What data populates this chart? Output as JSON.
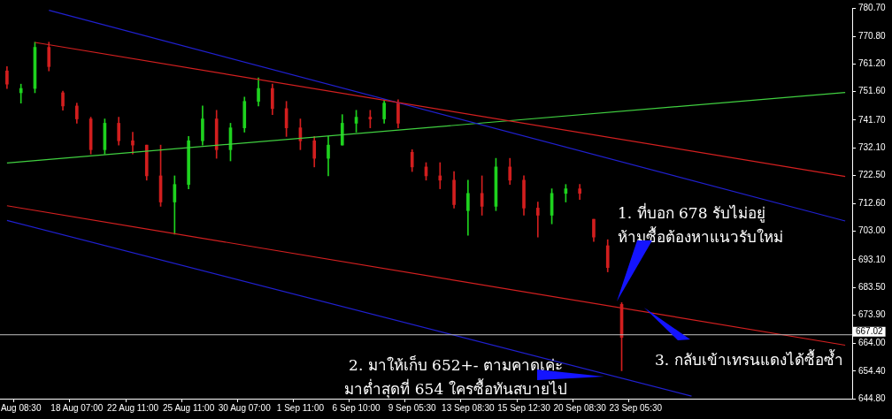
{
  "chart_data": {
    "type": "candlestick",
    "categories": [
      null,
      "Aug 08:30",
      null,
      null,
      null,
      "18 Aug 07:00",
      null,
      null,
      null,
      "22 Aug 11:00",
      null,
      null,
      null,
      "25 Aug 11:00",
      null,
      null,
      null,
      "30 Aug 07:00",
      null,
      null,
      null,
      "1 Sep 11:00",
      null,
      null,
      null,
      "6 Sep 10:00",
      null,
      null,
      null,
      "9 Sep 05:30",
      null,
      null,
      null,
      "13 Sep 08:30",
      null,
      null,
      null,
      "15 Sep 12:30",
      null,
      null,
      null,
      "20 Sep 08:30",
      null,
      null,
      null,
      "23 Sep 05:30",
      null,
      null,
      null,
      null,
      null,
      null,
      null,
      null,
      null,
      null,
      null,
      null,
      null,
      null,
      null
    ],
    "ohlc": [
      [
        758.8,
        760.3,
        752.7,
        754.2
      ],
      [
        751.2,
        754.2,
        747.6,
        752.7
      ],
      [
        752.7,
        768.8,
        751.2,
        767.0
      ],
      [
        767.0,
        768.8,
        758.8,
        760.3
      ],
      [
        751.2,
        751.8,
        745.1,
        746.6
      ],
      [
        746.6,
        747.6,
        740.6,
        742.1
      ],
      [
        742.1,
        742.7,
        729.9,
        731.4
      ],
      [
        731.4,
        742.1,
        729.9,
        740.6
      ],
      [
        740.6,
        742.7,
        733.0,
        734.5
      ],
      [
        734.5,
        737.5,
        729.9,
        733.0
      ],
      [
        733.0,
        733.0,
        720.8,
        722.3
      ],
      [
        722.3,
        733.0,
        711.7,
        713.2
      ],
      [
        713.2,
        722.3,
        702.0,
        719.3
      ],
      [
        719.3,
        736.0,
        717.8,
        734.5
      ],
      [
        734.5,
        746.6,
        733.0,
        742.1
      ],
      [
        742.1,
        745.1,
        728.4,
        731.4
      ],
      [
        731.4,
        740.6,
        727.5,
        739.0
      ],
      [
        739.0,
        749.7,
        737.5,
        748.2
      ],
      [
        748.2,
        756.4,
        746.6,
        752.7
      ],
      [
        752.7,
        754.2,
        743.6,
        745.7
      ],
      [
        745.7,
        748.2,
        736.0,
        739.0
      ],
      [
        739.0,
        742.1,
        731.4,
        734.5
      ],
      [
        734.5,
        736.0,
        725.4,
        728.4
      ],
      [
        728.4,
        736.0,
        722.3,
        733.0
      ],
      [
        733.0,
        743.6,
        733.0,
        740.6
      ],
      [
        740.6,
        745.1,
        737.5,
        742.7
      ],
      [
        742.7,
        745.1,
        739.0,
        742.1
      ],
      [
        742.1,
        748.8,
        740.6,
        747.6
      ],
      [
        747.6,
        748.8,
        739.0,
        740.6
      ],
      [
        730.5,
        731.4,
        723.8,
        725.4
      ],
      [
        725.4,
        726.9,
        720.8,
        722.3
      ],
      [
        722.3,
        726.9,
        717.8,
        720.8
      ],
      [
        720.8,
        723.8,
        711.1,
        712.3
      ],
      [
        710.2,
        720.8,
        701.6,
        716.2
      ],
      [
        716.2,
        722.3,
        708.6,
        711.7
      ],
      [
        711.7,
        728.4,
        710.2,
        725.4
      ],
      [
        725.4,
        728.4,
        719.3,
        720.8
      ],
      [
        720.8,
        722.3,
        708.6,
        711.1
      ],
      [
        711.1,
        713.2,
        701.0,
        708.6
      ],
      [
        708.6,
        717.8,
        705.6,
        716.2
      ],
      [
        716.2,
        719.3,
        713.2,
        717.8
      ],
      [
        717.8,
        719.3,
        714.1,
        716.2
      ],
      [
        707.2,
        707.2,
        699.5,
        701.0
      ],
      [
        698.0,
        700.1,
        688.9,
        690.4
      ],
      [
        677.6,
        678.2,
        654.5,
        666.1
      ],
      null,
      null,
      null,
      null,
      null,
      null,
      null,
      null,
      null,
      null,
      null,
      null,
      null,
      null,
      null,
      null
    ],
    "colors": [
      "#d21e1e",
      "#1ed21e",
      "#1ed21e",
      "#d21e1e",
      "#d21e1e",
      "#d21e1e",
      "#d21e1e",
      "#1ed21e",
      "#d21e1e",
      "#d21e1e",
      "#d21e1e",
      "#d21e1e",
      "#1ed21e",
      "#1ed21e",
      "#1ed21e",
      "#d21e1e",
      "#1ed21e",
      "#1ed21e",
      "#1ed21e",
      "#d21e1e",
      "#d21e1e",
      "#d21e1e",
      "#d21e1e",
      "#1ed21e",
      "#1ed21e",
      "#1ed21e",
      "#d21e1e",
      "#1ed21e",
      "#d21e1e",
      "#d21e1e",
      "#d21e1e",
      "#d21e1e",
      "#d21e1e",
      "#1ed21e",
      "#d21e1e",
      "#1ed21e",
      "#d21e1e",
      "#d21e1e",
      "#d21e1e",
      "#1ed21e",
      "#1ed21e",
      "#d21e1e",
      "#d21e1e",
      "#d21e1e",
      "#d21e1e",
      null,
      null,
      null,
      null,
      null,
      null,
      null,
      null,
      null,
      null,
      null,
      null,
      null,
      null,
      null,
      null
    ],
    "series": [
      {
        "type": "line",
        "color": "#d42020",
        "values": [
          null,
          null,
          768.7,
          null,
          null,
          null,
          null,
          null,
          null,
          null,
          null,
          null,
          null,
          null,
          null,
          null,
          null,
          null,
          null,
          null,
          null,
          null,
          null,
          null,
          null,
          null,
          null,
          null,
          null,
          null,
          null,
          null,
          null,
          null,
          null,
          null,
          null,
          null,
          null,
          null,
          null,
          null,
          null,
          null,
          null,
          null,
          null,
          null,
          null,
          null,
          null,
          null,
          null,
          null,
          null,
          null,
          null,
          null,
          null,
          null,
          722.1
        ]
      },
      {
        "type": "line",
        "color": "#2020d0",
        "values": [
          null,
          null,
          null,
          779.9,
          null,
          null,
          null,
          null,
          null,
          null,
          null,
          null,
          null,
          null,
          null,
          null,
          null,
          null,
          null,
          null,
          null,
          null,
          null,
          null,
          null,
          null,
          null,
          null,
          null,
          null,
          null,
          null,
          null,
          null,
          null,
          null,
          null,
          null,
          null,
          null,
          null,
          null,
          null,
          null,
          null,
          null,
          null,
          null,
          null,
          null,
          null,
          null,
          null,
          null,
          null,
          null,
          null,
          null,
          null,
          null,
          706.6
        ]
      },
      {
        "type": "line",
        "color": "#40d040",
        "values": [
          726.8,
          null,
          null,
          null,
          null,
          null,
          null,
          null,
          null,
          null,
          null,
          null,
          null,
          null,
          null,
          null,
          null,
          null,
          null,
          null,
          null,
          null,
          null,
          null,
          null,
          null,
          null,
          null,
          null,
          null,
          null,
          null,
          null,
          null,
          null,
          null,
          null,
          null,
          null,
          null,
          null,
          null,
          null,
          null,
          null,
          null,
          null,
          null,
          null,
          null,
          null,
          null,
          null,
          null,
          null,
          null,
          null,
          null,
          null,
          null,
          751.3
        ]
      },
      {
        "type": "line",
        "color": "#d42020",
        "values": [
          711.9,
          null,
          null,
          null,
          null,
          null,
          null,
          null,
          null,
          null,
          null,
          null,
          null,
          null,
          null,
          null,
          null,
          null,
          null,
          null,
          null,
          null,
          null,
          null,
          null,
          null,
          null,
          null,
          null,
          null,
          null,
          null,
          null,
          null,
          null,
          null,
          null,
          null,
          null,
          null,
          null,
          null,
          null,
          null,
          null,
          null,
          null,
          null,
          null,
          null,
          null,
          null,
          null,
          null,
          null,
          null,
          null,
          null,
          null,
          null,
          663.4
        ]
      },
      {
        "type": "line",
        "color": "#2020d0",
        "values": [
          706.8,
          null,
          null,
          null,
          null,
          null,
          null,
          null,
          null,
          null,
          null,
          null,
          null,
          null,
          null,
          null,
          null,
          null,
          null,
          null,
          null,
          null,
          null,
          null,
          null,
          null,
          null,
          null,
          null,
          null,
          null,
          null,
          null,
          null,
          null,
          null,
          null,
          null,
          null,
          null,
          null,
          null,
          null,
          null,
          null,
          null,
          null,
          null,
          null,
          645.7,
          null,
          null,
          null,
          null,
          null,
          null,
          null,
          null,
          null,
          null,
          null
        ]
      }
    ],
    "ylim": [
      644.8,
      780.7
    ],
    "yticks": [
      {
        "value": 780.7,
        "label": "780.70"
      },
      {
        "value": 770.8,
        "label": "770.80"
      },
      {
        "value": 761.2,
        "label": "761.20"
      },
      {
        "value": 751.6,
        "label": "751.60"
      },
      {
        "value": 741.7,
        "label": "741.70"
      },
      {
        "value": 732.1,
        "label": "732.10"
      },
      {
        "value": 722.5,
        "label": "722.50"
      },
      {
        "value": 712.6,
        "label": "712.60"
      },
      {
        "value": 703.0,
        "label": "703.00"
      },
      {
        "value": 693.1,
        "label": "693.10"
      },
      {
        "value": 683.5,
        "label": "683.50"
      },
      {
        "value": 673.9,
        "label": "673.90"
      },
      {
        "value": 664.0,
        "label": "664.00"
      },
      {
        "value": 654.4,
        "label": "654.40"
      },
      {
        "value": 644.8,
        "label": "644.80"
      }
    ],
    "ref_lines": [
      {
        "axis": "y",
        "value": 667.02,
        "label": "667.02",
        "color": "#c0c0c0"
      }
    ],
    "annotations": [
      "1. ที่บอก 678 รับไม่อยู่\nห้ามซื้อต้องหาแนวรับใหม่",
      "2. มาให้เก็บ 652+- ตามคาดเค่ะ\nมาต่ำสุดที่ 654 ใครซื้อทันสบายไป",
      "3. กลับเข้าเทรนแดงได้ซื้อซ้ำ"
    ]
  }
}
